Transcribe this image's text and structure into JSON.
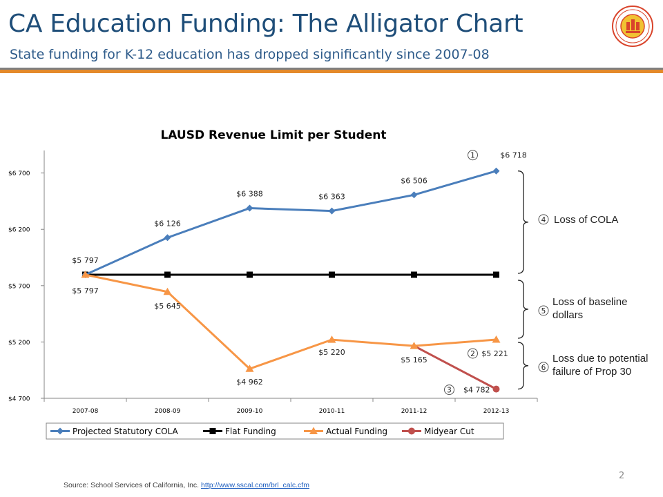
{
  "header": {
    "title": "CA Education Funding: The Alligator Chart",
    "subtitle": "State funding for K-12 education has dropped significantly since 2007-08",
    "accent_color": "#e48a2a",
    "logo_icon": "lausd-seal-icon"
  },
  "chart_data": {
    "type": "line",
    "title": "LAUSD Revenue Limit per Student",
    "categories": [
      "2007-08",
      "2008-09",
      "2009-10",
      "2010-11",
      "2011-12",
      "2012-13"
    ],
    "ylim": [
      4700,
      6900
    ],
    "yticks": [
      "$4 700",
      "$5 200",
      "$5 700",
      "$6 200",
      "$6 700"
    ],
    "ytick_values": [
      4700,
      5200,
      5700,
      6200,
      6700
    ],
    "series": [
      {
        "name": "Projected Statutory COLA",
        "color": "#4a7ebb",
        "marker": "diamond",
        "values": [
          5797,
          6126,
          6388,
          6363,
          6506,
          6718
        ],
        "labels": [
          "$5 797",
          "$6 126",
          "$6 388",
          "$6 363",
          "$6 506",
          "$6 718"
        ]
      },
      {
        "name": "Flat Funding",
        "color": "#000000",
        "marker": "square",
        "values": [
          5797,
          5797,
          5797,
          5797,
          5797,
          5797
        ],
        "labels": [
          "",
          "",
          "",
          "",
          "",
          ""
        ]
      },
      {
        "name": "Actual Funding",
        "color": "#f79646",
        "marker": "triangle",
        "values": [
          5797,
          5645,
          4962,
          5220,
          5165,
          5221
        ],
        "labels": [
          "$5 797",
          "$5 645",
          "$4 962",
          "$5 220",
          "$5 165",
          "$5 221"
        ]
      },
      {
        "name": "Midyear Cut",
        "color": "#c0504d",
        "marker": "circle",
        "values": [
          null,
          null,
          null,
          null,
          5165,
          4782
        ],
        "labels": [
          "",
          "",
          "",
          "",
          "",
          "$4 782"
        ]
      }
    ],
    "legend_position": "bottom",
    "grid": false,
    "markers": [
      {
        "number": "1",
        "text": ""
      },
      {
        "number": "2",
        "text": ""
      },
      {
        "number": "3",
        "text": ""
      },
      {
        "number": "4",
        "text": "Loss of COLA"
      },
      {
        "number": "5",
        "text": "Loss of baseline dollars"
      },
      {
        "number": "6",
        "text": "Loss due to potential failure of Prop 30"
      }
    ]
  },
  "footer": {
    "source_prefix": "Source: School Services of California, Inc.",
    "source_link": "http://www.sscal.com/brl_calc.cfm",
    "page_number": "2"
  }
}
